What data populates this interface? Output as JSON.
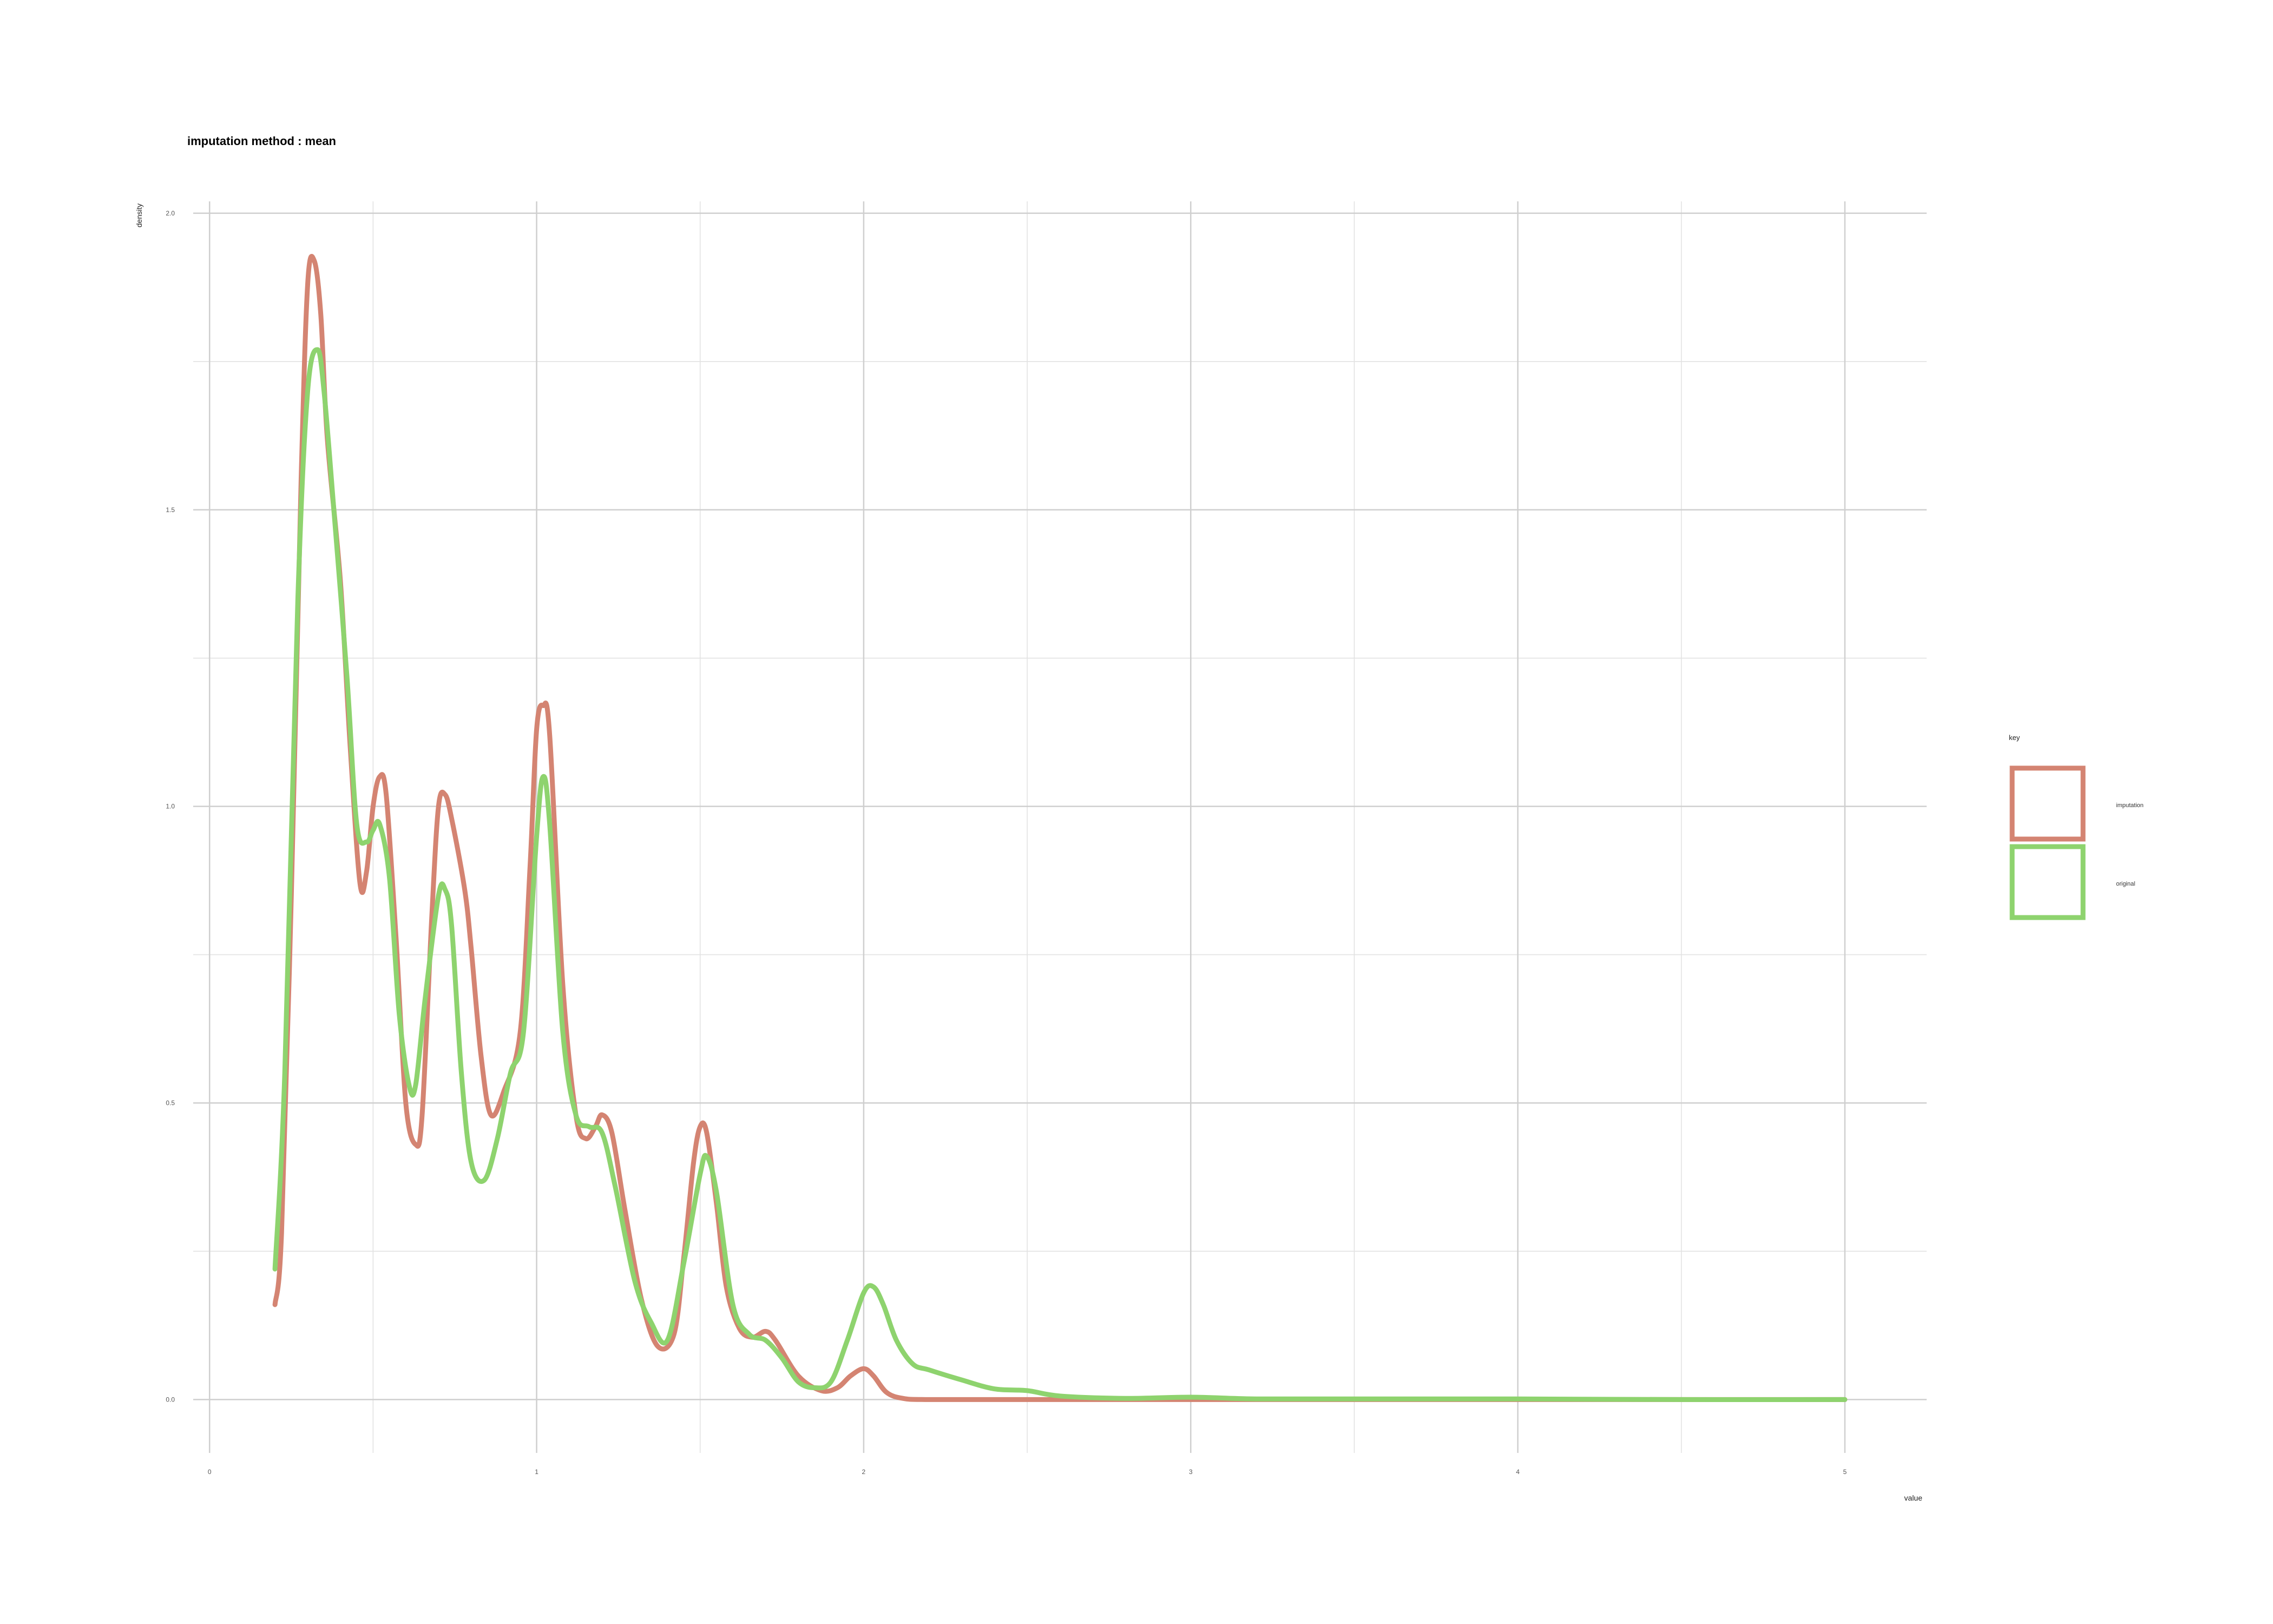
{
  "chart_data": {
    "type": "line",
    "title": "imputation method : mean",
    "xlabel": "value",
    "ylabel": "density",
    "xlim": [
      -0.05,
      5.25
    ],
    "ylim": [
      -0.09,
      2.02
    ],
    "x_ticks": [
      0,
      1,
      2,
      3,
      4,
      5
    ],
    "x_tick_labels": [
      "0",
      "1",
      "2",
      "3",
      "4",
      "5"
    ],
    "y_ticks": [
      0.0,
      0.5,
      1.0,
      1.5,
      2.0
    ],
    "y_tick_labels": [
      "0.0",
      "0.5",
      "1.0",
      "1.5",
      "2.0"
    ],
    "grid": true,
    "legend": {
      "title": "key",
      "position": "right"
    },
    "series": [
      {
        "name": "imputation",
        "color": "#D48472",
        "x": [
          0.2,
          0.22,
          0.25,
          0.28,
          0.3,
          0.32,
          0.34,
          0.36,
          0.4,
          0.43,
          0.46,
          0.48,
          0.5,
          0.52,
          0.54,
          0.57,
          0.6,
          0.63,
          0.65,
          0.68,
          0.7,
          0.72,
          0.74,
          0.78,
          0.8,
          0.83,
          0.86,
          0.9,
          0.95,
          0.98,
          1.0,
          1.02,
          1.04,
          1.08,
          1.12,
          1.15,
          1.18,
          1.2,
          1.23,
          1.27,
          1.32,
          1.37,
          1.42,
          1.45,
          1.48,
          1.5,
          1.52,
          1.55,
          1.58,
          1.62,
          1.66,
          1.7,
          1.73,
          1.8,
          1.87,
          1.92,
          1.96,
          2.0,
          2.03,
          2.07,
          2.12,
          2.2,
          2.5,
          3.0,
          3.5,
          4.0,
          4.5,
          5.0
        ],
        "y": [
          0.16,
          0.28,
          0.85,
          1.55,
          1.88,
          1.92,
          1.83,
          1.62,
          1.38,
          1.1,
          0.87,
          0.89,
          1.0,
          1.05,
          1.02,
          0.78,
          0.5,
          0.43,
          0.48,
          0.82,
          1.0,
          1.02,
          0.98,
          0.86,
          0.76,
          0.58,
          0.48,
          0.52,
          0.62,
          0.9,
          1.13,
          1.17,
          1.12,
          0.7,
          0.48,
          0.44,
          0.46,
          0.48,
          0.45,
          0.32,
          0.17,
          0.09,
          0.11,
          0.24,
          0.4,
          0.46,
          0.45,
          0.33,
          0.19,
          0.12,
          0.105,
          0.115,
          0.1,
          0.04,
          0.015,
          0.02,
          0.04,
          0.052,
          0.04,
          0.012,
          0.002,
          0.0,
          0.0,
          0.0,
          0.0,
          0.0,
          0.0,
          0.0
        ]
      },
      {
        "name": "original",
        "color": "#8ED36E",
        "x": [
          0.2,
          0.23,
          0.27,
          0.3,
          0.33,
          0.35,
          0.38,
          0.42,
          0.45,
          0.48,
          0.5,
          0.52,
          0.55,
          0.58,
          0.61,
          0.63,
          0.66,
          0.7,
          0.72,
          0.74,
          0.77,
          0.8,
          0.84,
          0.88,
          0.92,
          0.96,
          1.0,
          1.02,
          1.04,
          1.08,
          1.12,
          1.16,
          1.2,
          1.24,
          1.3,
          1.35,
          1.4,
          1.45,
          1.5,
          1.52,
          1.55,
          1.6,
          1.65,
          1.7,
          1.75,
          1.8,
          1.85,
          1.9,
          1.95,
          2.0,
          2.03,
          2.06,
          2.1,
          2.15,
          2.2,
          2.3,
          2.4,
          2.5,
          2.6,
          2.8,
          3.0,
          3.2,
          3.5,
          4.0,
          4.5,
          5.0
        ],
        "y": [
          0.22,
          0.55,
          1.35,
          1.7,
          1.77,
          1.7,
          1.5,
          1.22,
          0.97,
          0.94,
          0.96,
          0.97,
          0.88,
          0.65,
          0.53,
          0.53,
          0.68,
          0.85,
          0.86,
          0.8,
          0.55,
          0.4,
          0.37,
          0.44,
          0.55,
          0.62,
          0.95,
          1.05,
          0.97,
          0.62,
          0.48,
          0.46,
          0.45,
          0.36,
          0.2,
          0.13,
          0.1,
          0.23,
          0.38,
          0.41,
          0.35,
          0.16,
          0.11,
          0.1,
          0.07,
          0.03,
          0.02,
          0.03,
          0.1,
          0.18,
          0.19,
          0.16,
          0.1,
          0.06,
          0.05,
          0.033,
          0.018,
          0.015,
          0.006,
          0.002,
          0.004,
          0.001,
          0.001,
          0.001,
          0.0,
          0.0
        ]
      }
    ]
  }
}
